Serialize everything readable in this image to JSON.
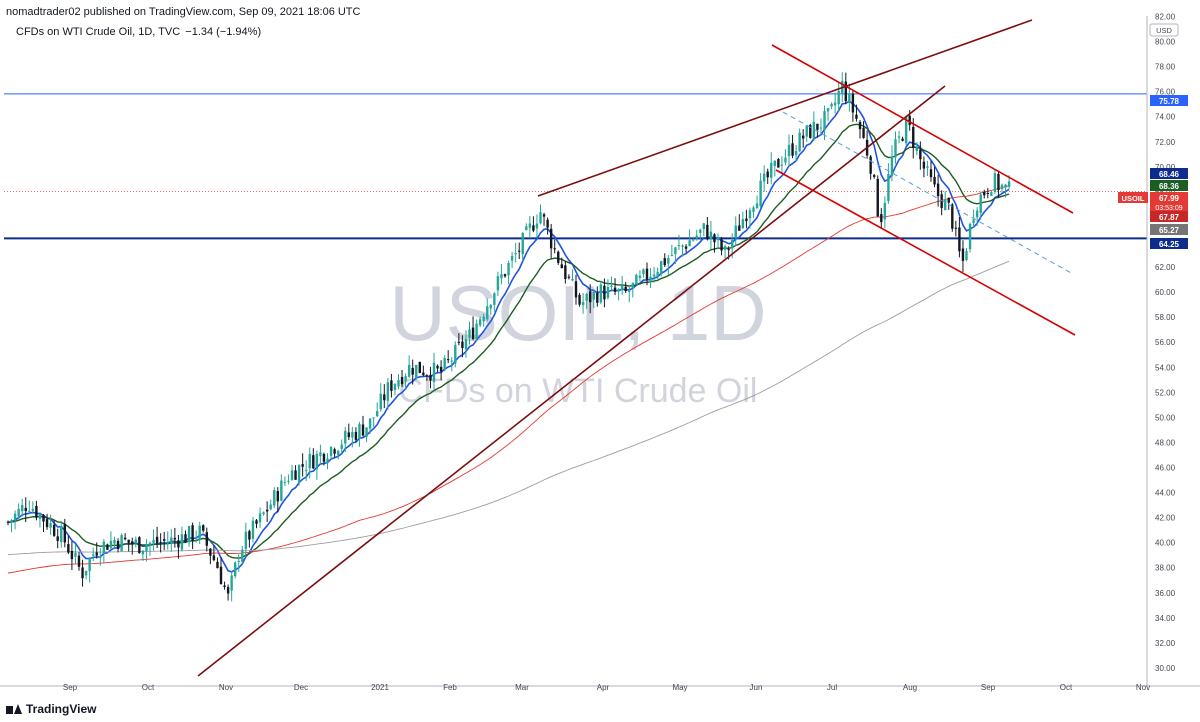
{
  "header": {
    "publisher": "nomadtrader02 published on TradingView.com, Sep 09, 2021 18:06 UTC"
  },
  "symbol_info": {
    "name": "CFDs on WTI Crude Oil, 1D, TVC",
    "change": "−1.34 (−1.94%)"
  },
  "footer": {
    "brand": "TradingView"
  },
  "colors": {
    "up": "#26a69a",
    "down": "#131722",
    "blue_ma": "#1e53e5",
    "green_ma": "#1b5e20",
    "red_ma": "#e53935",
    "gray_ma": "#9e9e9e",
    "trend": "#7b0d0d",
    "channel": "#d50000",
    "level_75": "#2962ff",
    "level_64": "#0d2c8c"
  },
  "chart_data": {
    "type": "candlestick",
    "title": "",
    "watermark_symbol": "USOIL, 1D",
    "watermark_description": "CFDs on WTI Crude Oil",
    "currency": "USD",
    "x_ticks": [
      "Sep",
      "Oct",
      "Nov",
      "Dec",
      "2021",
      "Feb",
      "Mar",
      "Apr",
      "May",
      "Jun",
      "Jul",
      "Aug",
      "Sep",
      "Oct",
      "Nov"
    ],
    "y_ticks": [
      30,
      32,
      34,
      36,
      38,
      40,
      42,
      44,
      46,
      48,
      50,
      52,
      54,
      56,
      58,
      60,
      62,
      64,
      66,
      68,
      70,
      72,
      74,
      76,
      78,
      80,
      82
    ],
    "ylim": [
      29,
      82
    ],
    "price_labels": [
      {
        "label": "75.78",
        "value": 75.78,
        "color": "#2962ff"
      },
      {
        "label": "68.46",
        "value": 68.46,
        "color": "#0d2c8c"
      },
      {
        "label": "68.36",
        "value": 68.36,
        "color": "#1b5e20"
      },
      {
        "label": "67.99",
        "value": 67.99,
        "color": "#e53935",
        "symbol": "USOIL",
        "countdown": "03:53:09"
      },
      {
        "label": "67.87",
        "value": 67.87,
        "color": "#c62828"
      },
      {
        "label": "65.27",
        "value": 65.27,
        "color": "#757575"
      },
      {
        "label": "64.25",
        "value": 64.25,
        "color": "#0d2c8c"
      }
    ],
    "horizontal_levels": [
      {
        "value": 75.78,
        "style": "thin"
      },
      {
        "value": 64.25,
        "style": "thick"
      }
    ],
    "key_prices": [
      {
        "date": "Sep 2020",
        "close": 41.5
      },
      {
        "date": "Nov 02 2020",
        "low": 33.6
      },
      {
        "date": "Dec 2020",
        "close": 45.5
      },
      {
        "date": "Mar 08 2021",
        "high": 67.9
      },
      {
        "date": "Mar 23 2021",
        "low": 57.5
      },
      {
        "date": "Jul 06 2021",
        "high": 76.9
      },
      {
        "date": "Jul 20 2021",
        "low": 65.0
      },
      {
        "date": "Aug 23 2021",
        "low": 61.8
      },
      {
        "date": "Sep 09 2021",
        "close": 67.99
      }
    ],
    "series": [
      {
        "name": "",
        "kind": "EMA fast",
        "color": "#1e53e5"
      },
      {
        "name": "",
        "kind": "EMA slow",
        "color": "#1b5e20"
      },
      {
        "name": "",
        "kind": "SMA 100",
        "color": "#e53935"
      },
      {
        "name": "",
        "kind": "SMA 200",
        "color": "#9e9e9e"
      }
    ],
    "grid": false
  }
}
